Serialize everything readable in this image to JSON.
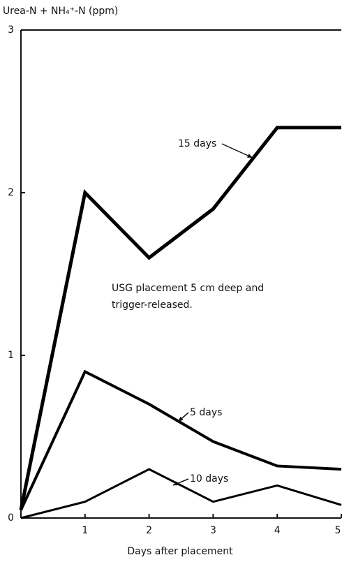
{
  "chart_data": {
    "type": "line",
    "ylabel": "Urea-N + NH₄⁺-N (ppm)",
    "xlabel": "Days after placement",
    "x": [
      0,
      1,
      2,
      3,
      4,
      5
    ],
    "xlim": [
      0,
      5
    ],
    "xticks": [
      1,
      2,
      3,
      4,
      5
    ],
    "ylim": [
      0,
      3
    ],
    "yticks": [
      0,
      1,
      2,
      3
    ],
    "series": [
      {
        "name": "15 days",
        "color": "#000000",
        "values": [
          0.05,
          2.0,
          1.6,
          1.9,
          2.4,
          2.4
        ]
      },
      {
        "name": "5 days",
        "color": "#000000",
        "values": [
          0.05,
          0.9,
          0.7,
          0.47,
          0.32,
          0.3
        ]
      },
      {
        "name": "10 days",
        "color": "#000000",
        "values": [
          0,
          0.1,
          0.3,
          0.1,
          0.2,
          0.08
        ]
      }
    ],
    "annotations": [
      "USG placement 5 cm deep and",
      "trigger-released."
    ]
  }
}
